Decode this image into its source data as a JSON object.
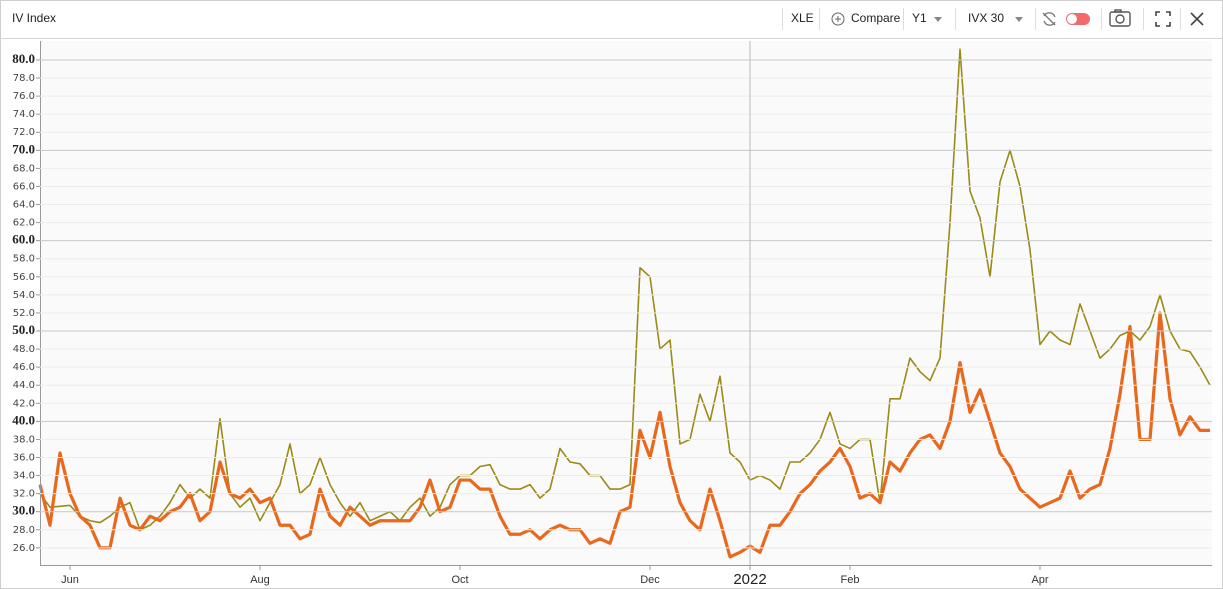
{
  "toolbar": {
    "title": "IV Index",
    "symbol": "XLE",
    "compare": "Compare",
    "period": "Y1",
    "measure": "IVX 30"
  },
  "chart_data": {
    "type": "line",
    "categories": [
      null,
      null,
      null,
      "Jun",
      null,
      null,
      null,
      null,
      null,
      null,
      null,
      null,
      null,
      null,
      null,
      null,
      null,
      null,
      null,
      null,
      null,
      null,
      "Aug",
      null,
      null,
      null,
      null,
      null,
      null,
      null,
      null,
      null,
      null,
      null,
      null,
      null,
      null,
      null,
      null,
      null,
      null,
      null,
      "Oct",
      null,
      null,
      null,
      null,
      null,
      null,
      null,
      null,
      null,
      null,
      null,
      null,
      null,
      null,
      null,
      null,
      null,
      null,
      "Dec",
      null,
      null,
      null,
      null,
      null,
      null,
      null,
      null,
      null,
      "2022",
      null,
      null,
      null,
      null,
      null,
      null,
      null,
      null,
      null,
      "Feb",
      null,
      null,
      null,
      null,
      null,
      null,
      null,
      null,
      null,
      null,
      null,
      null,
      null,
      null,
      null,
      null,
      null,
      null,
      "Apr",
      null,
      null,
      null,
      null,
      null,
      null,
      null,
      null,
      null,
      null,
      null,
      null,
      null,
      null,
      null,
      null,
      null
    ],
    "series": [
      {
        "color": "#9a8a17",
        "values": [
          32,
          30.5,
          30.6,
          30.7,
          29.5,
          29,
          28.8,
          29.5,
          30.5,
          31,
          28,
          28.5,
          29.5,
          31,
          33,
          31.5,
          32.5,
          31.5,
          40.3,
          32,
          30.5,
          31.5,
          29,
          31,
          33,
          37.5,
          32,
          33,
          36,
          33,
          31,
          29.5,
          31,
          29,
          29.5,
          30,
          29,
          30.5,
          31.5,
          29.5,
          30.5,
          33,
          34,
          34,
          35,
          35.2,
          33,
          32.5,
          32.5,
          33,
          31.5,
          32.5,
          37,
          35.5,
          35.3,
          34,
          34,
          32.5,
          32.5,
          33,
          57,
          56,
          48,
          49,
          37.5,
          38,
          43,
          40,
          45,
          36.5,
          35.5,
          33.5,
          34,
          33.5,
          32.5,
          35.5,
          35.5,
          36.5,
          38,
          41,
          37.5,
          37,
          38,
          38,
          31,
          42.5,
          42.5,
          47,
          45.5,
          44.5,
          47,
          62,
          81.2,
          65.5,
          62.5,
          56,
          66.5,
          70,
          66,
          59,
          48.5,
          50,
          49,
          48.5,
          53,
          50,
          47,
          48,
          49.5,
          50,
          49,
          50.5,
          54,
          50,
          48,
          47.7,
          46,
          44
        ]
      },
      {
        "color": "#e8681e",
        "values": [
          33,
          28.5,
          36.5,
          32,
          29.5,
          28.5,
          26,
          26,
          31.5,
          28.5,
          28,
          29.5,
          29,
          30,
          30.5,
          32,
          29,
          30,
          35.5,
          32,
          31.5,
          32.5,
          31,
          31.5,
          28.5,
          28.5,
          27,
          27.5,
          32.5,
          29.5,
          28.5,
          30.5,
          29.5,
          28.5,
          29,
          29,
          29,
          29,
          30.5,
          33.5,
          30,
          30.5,
          33.5,
          33.5,
          32.5,
          32.5,
          29.5,
          27.5,
          27.5,
          28,
          27,
          28,
          28.5,
          28,
          28,
          26.5,
          27,
          26.5,
          30,
          30.5,
          39,
          36,
          41,
          35,
          31,
          29,
          28,
          32.5,
          29,
          25,
          25.5,
          26.2,
          25.5,
          28.5,
          28.5,
          30,
          32,
          33,
          34.5,
          35.5,
          37,
          35,
          31.5,
          32,
          31,
          35.5,
          34.5,
          36.5,
          38,
          38.5,
          37,
          40,
          46.5,
          41,
          43.5,
          40,
          36.5,
          35,
          32.5,
          31.5,
          30.5,
          31,
          31.5,
          34.5,
          31.5,
          32.5,
          33,
          37,
          43,
          50.5,
          38,
          38,
          52,
          42.5,
          38.5,
          40.5,
          39,
          39
        ]
      }
    ],
    "ylim": [
      24.1,
      82.1
    ],
    "yticks": [
      {
        "value": 26,
        "label": "26.0"
      },
      {
        "value": 28,
        "label": "28.0"
      },
      {
        "value": 30,
        "label": "30.0"
      },
      {
        "value": 32,
        "label": "32.0"
      },
      {
        "value": 34,
        "label": "34.0"
      },
      {
        "value": 36,
        "label": "36.0"
      },
      {
        "value": 38,
        "label": "38.0"
      },
      {
        "value": 40,
        "label": "40.0"
      },
      {
        "value": 42,
        "label": "42.0"
      },
      {
        "value": 44,
        "label": "44.0"
      },
      {
        "value": 46,
        "label": "46.0"
      },
      {
        "value": 48,
        "label": "48.0"
      },
      {
        "value": 50,
        "label": "50.0"
      },
      {
        "value": 52,
        "label": "52.0"
      },
      {
        "value": 54,
        "label": "54.0"
      },
      {
        "value": 56,
        "label": "56.0"
      },
      {
        "value": 58,
        "label": "58.0"
      },
      {
        "value": 60,
        "label": "60.0"
      },
      {
        "value": 62,
        "label": "62.0"
      },
      {
        "value": 64,
        "label": "64.0"
      },
      {
        "value": 66,
        "label": "66.0"
      },
      {
        "value": 68,
        "label": "68.0"
      },
      {
        "value": 70,
        "label": "70.0"
      },
      {
        "value": 72,
        "label": "72.0"
      },
      {
        "value": 74,
        "label": "74.0"
      },
      {
        "value": 76,
        "label": "76.0"
      },
      {
        "value": 78,
        "label": "78.0"
      },
      {
        "value": 80,
        "label": "80.0"
      }
    ],
    "grid": true
  }
}
